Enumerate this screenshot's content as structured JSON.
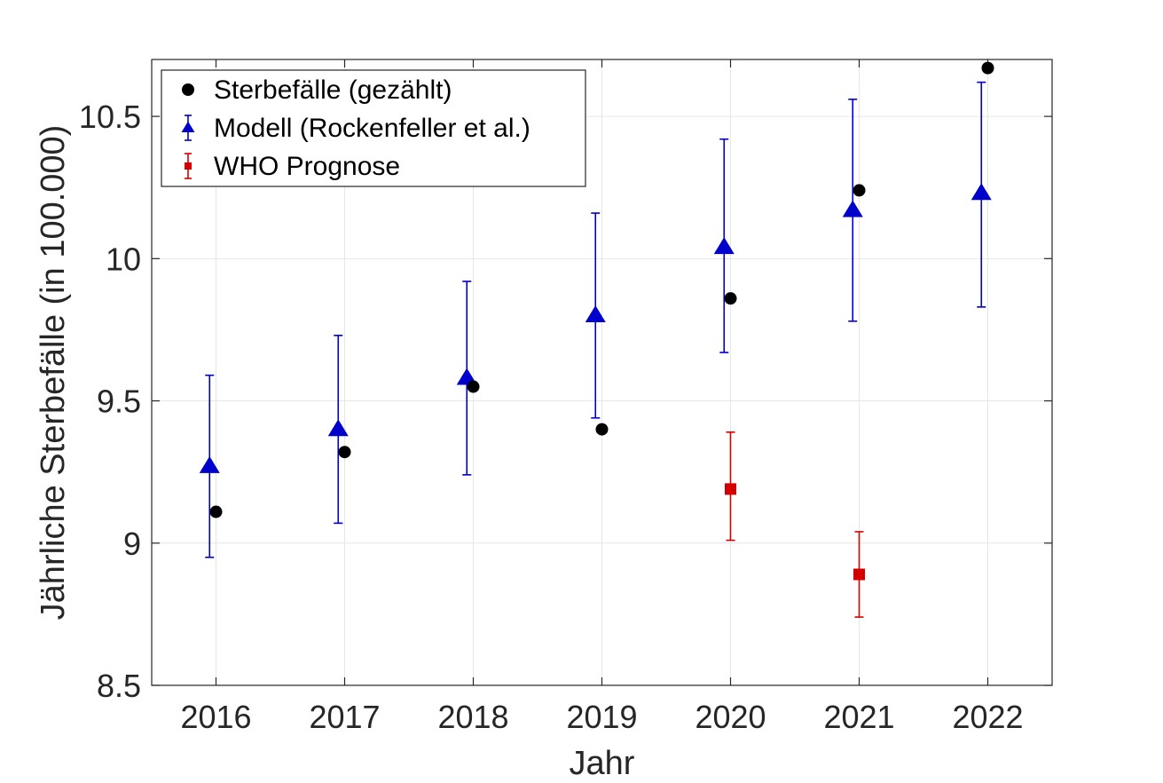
{
  "chart_data": {
    "type": "scatter",
    "xlabel": "Jahr",
    "ylabel": "Jährliche Sterbefälle (in 100.000)",
    "xlim": [
      2015.5,
      2022.5
    ],
    "ylim": [
      8.5,
      10.7
    ],
    "x_ticks": [
      "2016",
      "2017",
      "2018",
      "2019",
      "2020",
      "2021",
      "2022"
    ],
    "y_ticks": [
      "8.5",
      "9",
      "9.5",
      "10",
      "10.5"
    ],
    "grid": true,
    "legend_position": "top-left",
    "series": [
      {
        "name": "Sterbefälle (gezählt)",
        "marker": "circle",
        "color": "#000000",
        "x_offset": 0.0,
        "points": [
          {
            "x": 2016,
            "y": 9.11
          },
          {
            "x": 2017,
            "y": 9.32
          },
          {
            "x": 2018,
            "y": 9.55
          },
          {
            "x": 2019,
            "y": 9.4
          },
          {
            "x": 2020,
            "y": 9.86
          },
          {
            "x": 2021,
            "y": 10.24
          },
          {
            "x": 2022,
            "y": 10.67
          }
        ]
      },
      {
        "name": "Modell (Rockenfeller et al.)",
        "marker": "triangle",
        "color": "#0000cc",
        "x_offset": -0.05,
        "points": [
          {
            "x": 2016,
            "y": 9.27,
            "lo": 8.95,
            "hi": 9.59
          },
          {
            "x": 2017,
            "y": 9.4,
            "lo": 9.07,
            "hi": 9.73
          },
          {
            "x": 2018,
            "y": 9.58,
            "lo": 9.24,
            "hi": 9.92
          },
          {
            "x": 2019,
            "y": 9.8,
            "lo": 9.44,
            "hi": 10.16
          },
          {
            "x": 2020,
            "y": 10.04,
            "lo": 9.67,
            "hi": 10.42
          },
          {
            "x": 2021,
            "y": 10.17,
            "lo": 9.78,
            "hi": 10.56
          },
          {
            "x": 2022,
            "y": 10.23,
            "lo": 9.83,
            "hi": 10.62
          }
        ]
      },
      {
        "name": "WHO Prognose",
        "marker": "square",
        "color": "#d40000",
        "x_offset": 0.0,
        "points": [
          {
            "x": 2020,
            "y": 9.19,
            "lo": 9.01,
            "hi": 9.39
          },
          {
            "x": 2021,
            "y": 8.89,
            "lo": 8.74,
            "hi": 9.04
          }
        ]
      }
    ]
  }
}
